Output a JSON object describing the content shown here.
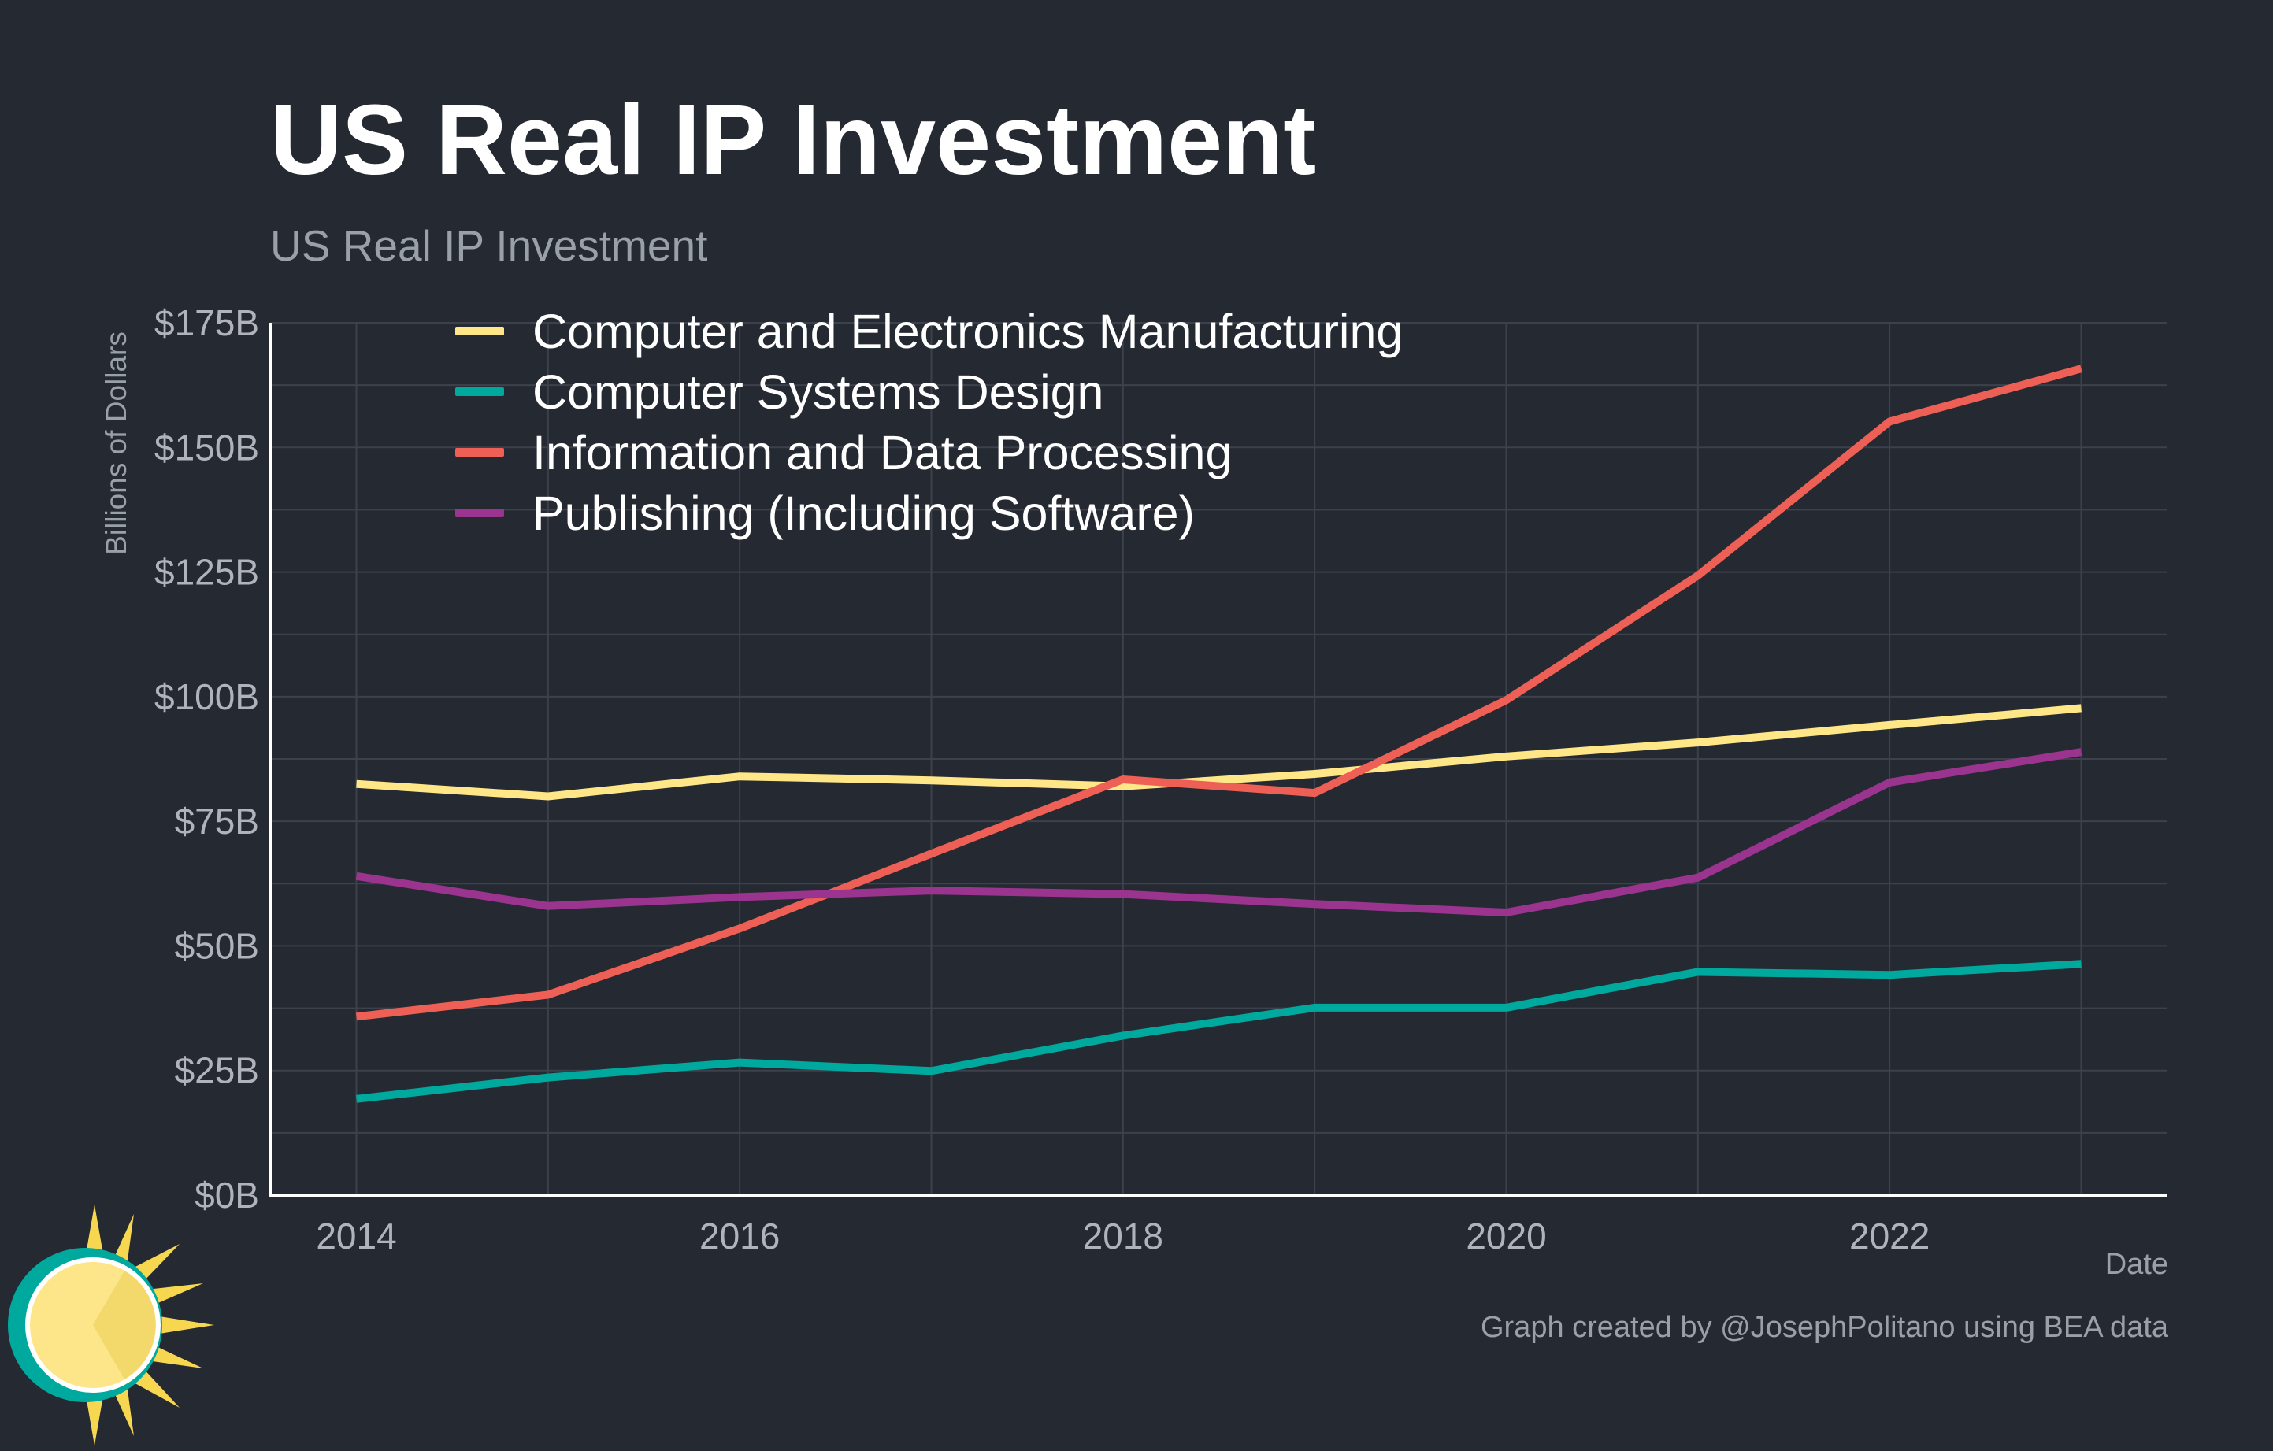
{
  "title": "US Real IP Investment",
  "subtitle": "US Real IP Investment",
  "caption": "Graph created by @JosephPolitano using BEA data",
  "chart_data": {
    "type": "line",
    "xlabel": "Date",
    "ylabel": "Billions of Dollars",
    "x": [
      2014,
      2015,
      2016,
      2017,
      2018,
      2019,
      2020,
      2021,
      2022,
      2023
    ],
    "xticks": [
      2014,
      2016,
      2018,
      2020,
      2022
    ],
    "xlim": [
      2013.55,
      2023.45
    ],
    "ylim": [
      0,
      175
    ],
    "yticks": [
      0,
      25,
      50,
      75,
      100,
      125,
      150,
      175
    ],
    "ytick_labels": [
      "$0B",
      "$25B",
      "$50B",
      "$75B",
      "$100B",
      "$125B",
      "$150B",
      "$175B"
    ],
    "grid": true,
    "legend_position": "top-left",
    "series": [
      {
        "name": "Computer and Electronics Manufacturing",
        "color": "#ffe787",
        "values": [
          82.5,
          80,
          84,
          83.2,
          82,
          84.5,
          88,
          90.8,
          94.3,
          97.7
        ]
      },
      {
        "name": "Computer Systems Design",
        "color": "#00a99d",
        "values": [
          19.3,
          23.6,
          26.6,
          24.9,
          32,
          37.6,
          37.6,
          44.8,
          44.2,
          46.4
        ]
      },
      {
        "name": "Information and Data Processing",
        "color": "#ee6055",
        "values": [
          35.8,
          40.2,
          53.5,
          68.5,
          83.4,
          80.7,
          99.3,
          124.3,
          155.2,
          165.8
        ]
      },
      {
        "name": "Publishing (Including Software)",
        "color": "#9a348e",
        "values": [
          64,
          58,
          59.8,
          61.1,
          60.4,
          58.4,
          56.7,
          63.7,
          82.8,
          88.9
        ]
      }
    ]
  }
}
